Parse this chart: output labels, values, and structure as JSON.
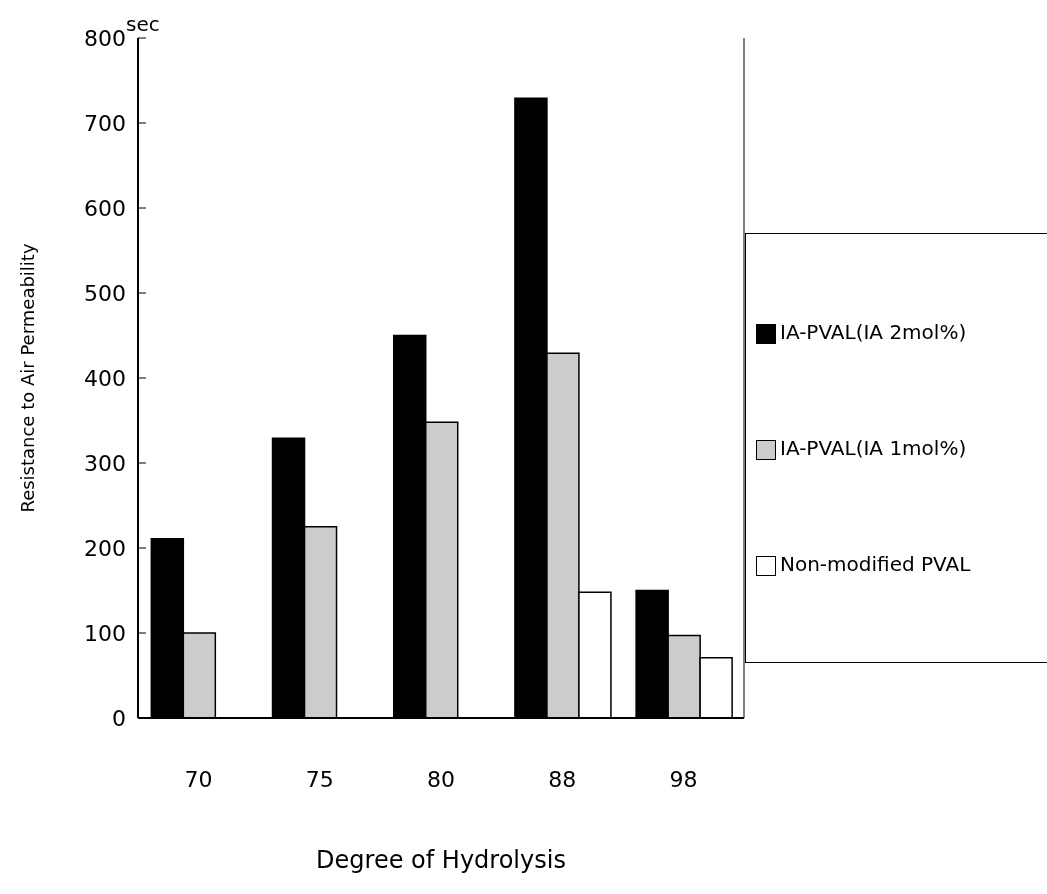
{
  "chart_data": {
    "type": "bar",
    "xlabel": "Degree of Hydrolysis",
    "ylabel": "Resistance to Air Permeability",
    "annotations": [
      "sec"
    ],
    "categories": [
      "70",
      "75",
      "80",
      "88",
      "98"
    ],
    "series": [
      {
        "name": "IA-PVAL(IA 2mol%)",
        "color": "#000000",
        "values": [
          211,
          329,
          450,
          729,
          150
        ]
      },
      {
        "name": "IA-PVAL(IA 1mol%)",
        "color": "#cccccc",
        "values": [
          100,
          225,
          348,
          429,
          97
        ]
      },
      {
        "name": "Non-modified PVAL",
        "color": "#ffffff",
        "values": [
          null,
          null,
          null,
          148,
          71
        ]
      }
    ],
    "ylim": [
      0,
      800
    ],
    "yticks": [
      0,
      100,
      200,
      300,
      400,
      500,
      600,
      700,
      800
    ],
    "grid": false,
    "legend": "right"
  }
}
